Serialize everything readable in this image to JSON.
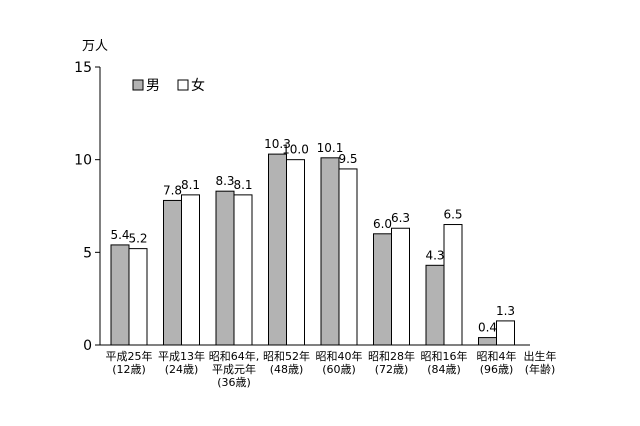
{
  "chart_data": {
    "type": "bar",
    "unit_label": "万人",
    "ylim": [
      0,
      15
    ],
    "yticks": [
      "0",
      "5",
      "10",
      "15"
    ],
    "grid": false,
    "legend": {
      "position": "top-left",
      "entries": [
        {
          "name": "男",
          "color": "#b3b3b3"
        },
        {
          "name": "女",
          "color": "#ffffff"
        }
      ]
    },
    "categories": [
      [
        "平成25年",
        "(12歳)"
      ],
      [
        "平成13年",
        "(24歳)"
      ],
      [
        "昭和64年,",
        "平成元年",
        "(36歳)"
      ],
      [
        "昭和52年",
        "(48歳)"
      ],
      [
        "昭和40年",
        "(60歳)"
      ],
      [
        "昭和28年",
        "(72歳)"
      ],
      [
        "昭和16年",
        "(84歳)"
      ],
      [
        "昭和4年",
        "(96歳)"
      ]
    ],
    "series": [
      {
        "name": "男",
        "values": [
          5.4,
          7.8,
          8.3,
          10.3,
          10.1,
          6.0,
          4.3,
          0.4
        ],
        "labels": [
          "5.4",
          "7.8",
          "8.3",
          "10.3",
          "10.1",
          "6.0",
          "4.3",
          "0.4"
        ]
      },
      {
        "name": "女",
        "values": [
          5.2,
          8.1,
          8.1,
          10.0,
          9.5,
          6.3,
          6.5,
          1.3
        ],
        "labels": [
          "5.2",
          "8.1",
          "8.1",
          "10.0",
          "9.5",
          "6.3",
          "6.5",
          "1.3"
        ]
      }
    ],
    "xlabel": [
      "出生年",
      "(年齢)"
    ]
  }
}
